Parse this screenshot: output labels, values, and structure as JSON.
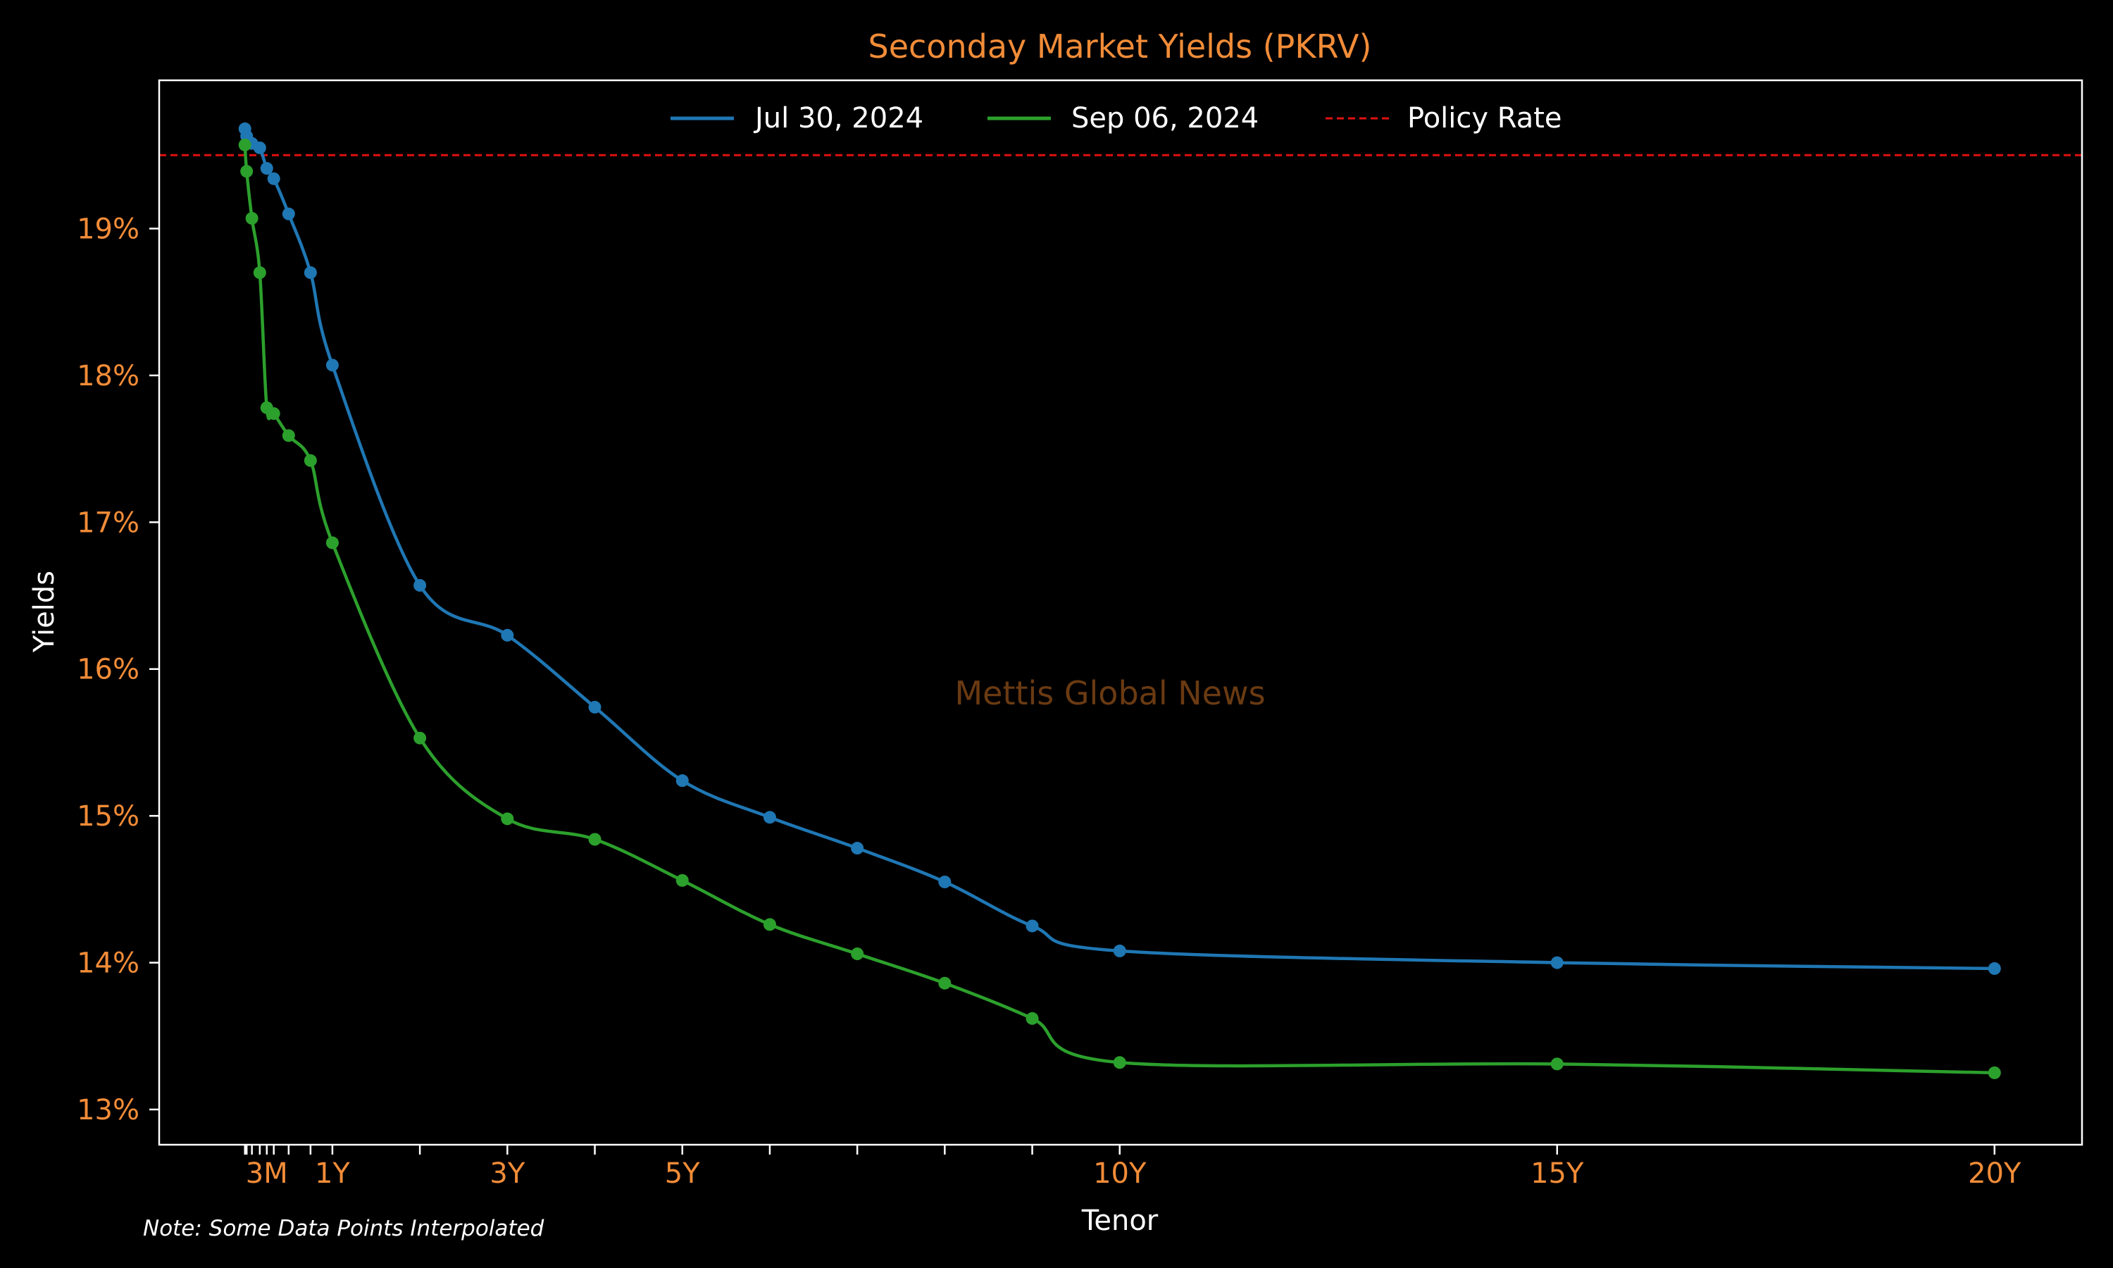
{
  "chart_data": {
    "type": "line",
    "title": "Seconday Market Yields (PKRV)",
    "xlabel": "Tenor",
    "ylabel": "Yields",
    "watermark": "Mettis Global News",
    "note": "Note: Some Data Points Interpolated",
    "xlim": [
      -0.98,
      21
    ],
    "ylim": [
      12.76,
      20.01
    ],
    "y_ticks": [
      13,
      14,
      15,
      16,
      17,
      18,
      19
    ],
    "y_tick_suffix": "%",
    "x_tick_labels": [
      {
        "x": 0.25,
        "label": "3M"
      },
      {
        "x": 1,
        "label": "1Y"
      },
      {
        "x": 3,
        "label": "3Y"
      },
      {
        "x": 5,
        "label": "5Y"
      },
      {
        "x": 10,
        "label": "10Y"
      },
      {
        "x": 15,
        "label": "15Y"
      },
      {
        "x": 20,
        "label": "20Y"
      }
    ],
    "x_minor_ticks": [
      0.0,
      0.02,
      0.08,
      0.17,
      0.33,
      0.5,
      0.75,
      2,
      4,
      6,
      7,
      8,
      9
    ],
    "x": [
      0.0,
      0.02,
      0.08,
      0.17,
      0.25,
      0.33,
      0.5,
      0.75,
      1,
      2,
      3,
      4,
      5,
      6,
      7,
      8,
      9,
      10,
      15,
      20
    ],
    "series": [
      {
        "name": "Jul 30, 2024",
        "color": "#1f77b4",
        "values": [
          19.68,
          19.63,
          19.58,
          19.55,
          19.41,
          19.34,
          19.1,
          18.7,
          18.07,
          16.57,
          16.23,
          15.74,
          15.24,
          14.99,
          14.78,
          14.55,
          14.25,
          14.08,
          14.0,
          13.96
        ]
      },
      {
        "name": "Sep 06, 2024",
        "color": "#2ca02c",
        "values": [
          19.57,
          19.39,
          19.07,
          18.7,
          17.78,
          17.74,
          17.59,
          17.42,
          16.86,
          15.53,
          14.98,
          14.84,
          14.56,
          14.26,
          14.06,
          13.86,
          13.62,
          13.32,
          13.31,
          13.25
        ]
      }
    ],
    "reference_line": {
      "name": "Policy Rate",
      "value": 19.5,
      "color": "#e01010",
      "style": "dashed"
    },
    "legend_placement": "top-center",
    "grid": false
  }
}
